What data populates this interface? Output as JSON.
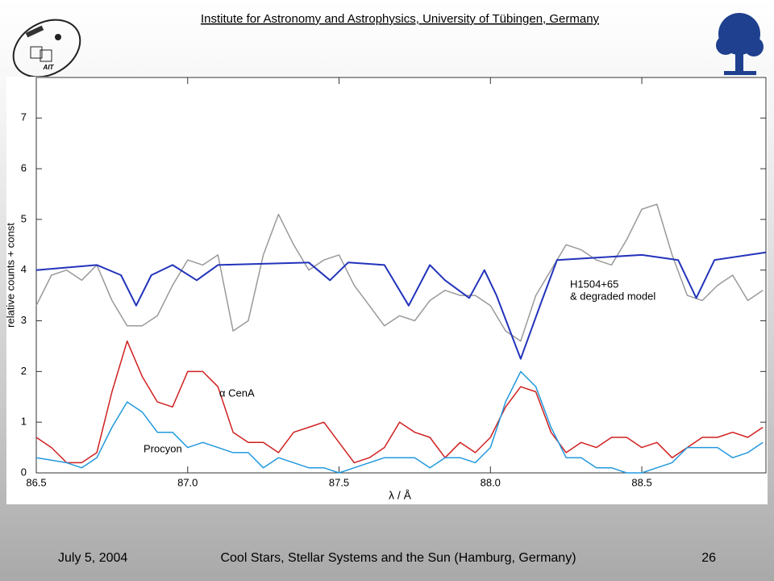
{
  "header": {
    "title": "Institute for Astronomy and Astrophysics, University of Tübingen, Germany",
    "logo_text": "AIT"
  },
  "footer": {
    "date": "July 5, 2004",
    "event": "Cool Stars, Stellar Systems and the Sun (Hamburg, Germany)",
    "page": "26"
  },
  "chart_data": {
    "type": "line",
    "xlabel": "λ / Å",
    "ylabel": "relative counts + const",
    "xlim": [
      86.5,
      88.91
    ],
    "ylim": [
      0,
      7.8
    ],
    "xticks": [
      86.5,
      {
        "value": 87,
        "label": "87.0"
      },
      87.5,
      {
        "value": 88,
        "label": "88.0"
      },
      88.5
    ],
    "yticks": [
      0,
      1,
      2,
      3,
      4,
      5,
      6,
      7
    ],
    "annotations": [
      "H1504+65",
      "& degraded model",
      "α CenA",
      "Procyon"
    ],
    "x": [
      86.5,
      86.55,
      86.6,
      86.65,
      86.7,
      86.75,
      86.8,
      86.85,
      86.9,
      86.95,
      87.0,
      87.05,
      87.1,
      87.15,
      87.2,
      87.25,
      87.3,
      87.35,
      87.4,
      87.45,
      87.5,
      87.55,
      87.6,
      87.65,
      87.7,
      87.75,
      87.8,
      87.85,
      87.9,
      87.95,
      88.0,
      88.05,
      88.1,
      88.15,
      88.2,
      88.25,
      88.3,
      88.35,
      88.4,
      88.45,
      88.5,
      88.55,
      88.6,
      88.65,
      88.7,
      88.75,
      88.8,
      88.85,
      88.9
    ],
    "series": [
      {
        "color": "#999999",
        "values": [
          3.3,
          3.9,
          4.0,
          3.8,
          4.1,
          3.4,
          2.9,
          2.9,
          3.1,
          3.7,
          4.2,
          4.1,
          4.3,
          2.8,
          3.0,
          4.3,
          5.1,
          4.5,
          4.0,
          4.2,
          4.3,
          3.7,
          3.3,
          2.9,
          3.1,
          3.0,
          3.4,
          3.6,
          3.5,
          3.5,
          3.3,
          2.8,
          2.6,
          3.5,
          4.0,
          4.5,
          4.4,
          4.2,
          4.1,
          4.6,
          5.2,
          5.3,
          4.3,
          3.5,
          3.4,
          3.7,
          3.9,
          3.4,
          3.6
        ]
      },
      {
        "color": "#2233bb",
        "x": [
          86.5,
          86.7,
          86.78,
          86.83,
          86.88,
          86.95,
          87.03,
          87.1,
          87.4,
          87.47,
          87.53,
          87.65,
          87.73,
          87.8,
          87.85,
          87.93,
          87.98,
          88.02,
          88.1,
          88.17,
          88.22,
          88.5,
          88.62,
          88.68,
          88.74,
          88.91
        ],
        "values": [
          4.0,
          4.1,
          3.9,
          3.3,
          3.9,
          4.1,
          3.8,
          4.1,
          4.15,
          3.8,
          4.15,
          4.1,
          3.3,
          4.1,
          3.8,
          3.45,
          4.0,
          3.5,
          2.25,
          3.4,
          4.2,
          4.3,
          4.2,
          3.45,
          4.2,
          4.35
        ]
      },
      {
        "color": "#d02020",
        "values": [
          0.7,
          0.5,
          0.2,
          0.2,
          0.4,
          1.6,
          2.6,
          1.9,
          1.4,
          1.3,
          2.0,
          2.0,
          1.7,
          0.8,
          0.6,
          0.6,
          0.4,
          0.8,
          0.9,
          1.0,
          0.6,
          0.2,
          0.3,
          0.5,
          1.0,
          0.8,
          0.7,
          0.3,
          0.6,
          0.4,
          0.7,
          1.3,
          1.7,
          1.6,
          0.8,
          0.4,
          0.6,
          0.5,
          0.7,
          0.7,
          0.5,
          0.6,
          0.3,
          0.5,
          0.7,
          0.7,
          0.8,
          0.7,
          0.9
        ]
      },
      {
        "color": "#2299dd",
        "values": [
          0.3,
          0.25,
          0.2,
          0.1,
          0.3,
          0.9,
          1.4,
          1.2,
          0.8,
          0.8,
          0.5,
          0.6,
          0.5,
          0.4,
          0.4,
          0.1,
          0.3,
          0.2,
          0.1,
          0.1,
          0.0,
          0.1,
          0.2,
          0.3,
          0.3,
          0.3,
          0.1,
          0.3,
          0.3,
          0.2,
          0.5,
          1.4,
          2.0,
          1.7,
          0.9,
          0.3,
          0.3,
          0.1,
          0.1,
          0.0,
          0.0,
          0.1,
          0.2,
          0.5,
          0.5,
          0.5,
          0.3,
          0.4,
          0.6
        ]
      }
    ]
  }
}
